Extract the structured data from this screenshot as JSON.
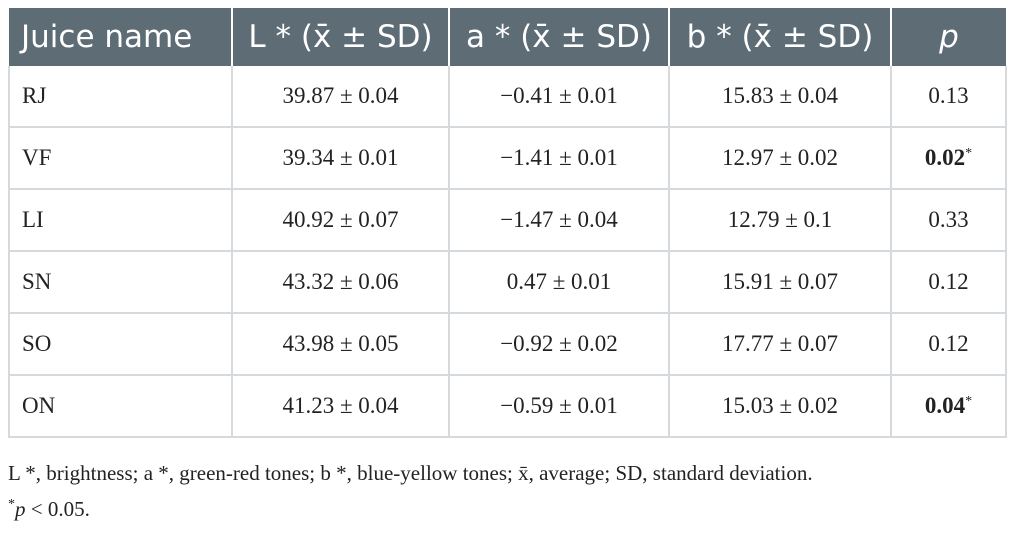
{
  "table": {
    "headers": [
      {
        "text": "Juice name"
      },
      {
        "text": "L * (x̄ ± SD)"
      },
      {
        "text": "a * (x̄ ± SD)"
      },
      {
        "text": "b * (x̄ ± SD)"
      },
      {
        "text": "p"
      }
    ],
    "rows": [
      {
        "name": "RJ",
        "L": "39.87 ± 0.04",
        "a": "−0.41 ± 0.01",
        "b": "15.83 ± 0.04",
        "p": "0.13",
        "p_sig": false
      },
      {
        "name": "VF",
        "L": "39.34 ± 0.01",
        "a": "−1.41 ± 0.01",
        "b": "12.97 ± 0.02",
        "p": "0.02",
        "p_sig": true,
        "p_mark": "*"
      },
      {
        "name": "LI",
        "L": "40.92 ± 0.07",
        "a": "−1.47 ± 0.04",
        "b": "12.79 ± 0.1",
        "p": "0.33",
        "p_sig": false
      },
      {
        "name": "SN",
        "L": "43.32 ± 0.06",
        "a": "0.47 ± 0.01",
        "b": "15.91 ± 0.07",
        "p": "0.12",
        "p_sig": false
      },
      {
        "name": "SO",
        "L": "43.98 ± 0.05",
        "a": "−0.92 ± 0.02",
        "b": "17.77 ± 0.07",
        "p": "0.12",
        "p_sig": false
      },
      {
        "name": "ON",
        "L": "41.23 ± 0.04",
        "a": "−0.59 ± 0.01",
        "b": "15.03 ± 0.02",
        "p": "0.04",
        "p_sig": true,
        "p_mark": "*"
      }
    ]
  },
  "footnote": {
    "line1": "L *, brightness; a *, green-red tones; b *, blue-yellow tones; x̄, average; SD, standard deviation.",
    "line2_mark": "*",
    "line2_p": "p",
    "line2_rest": " < 0.05."
  },
  "colors": {
    "header_bg": "#5d6c75",
    "border": "#d7dadc"
  }
}
